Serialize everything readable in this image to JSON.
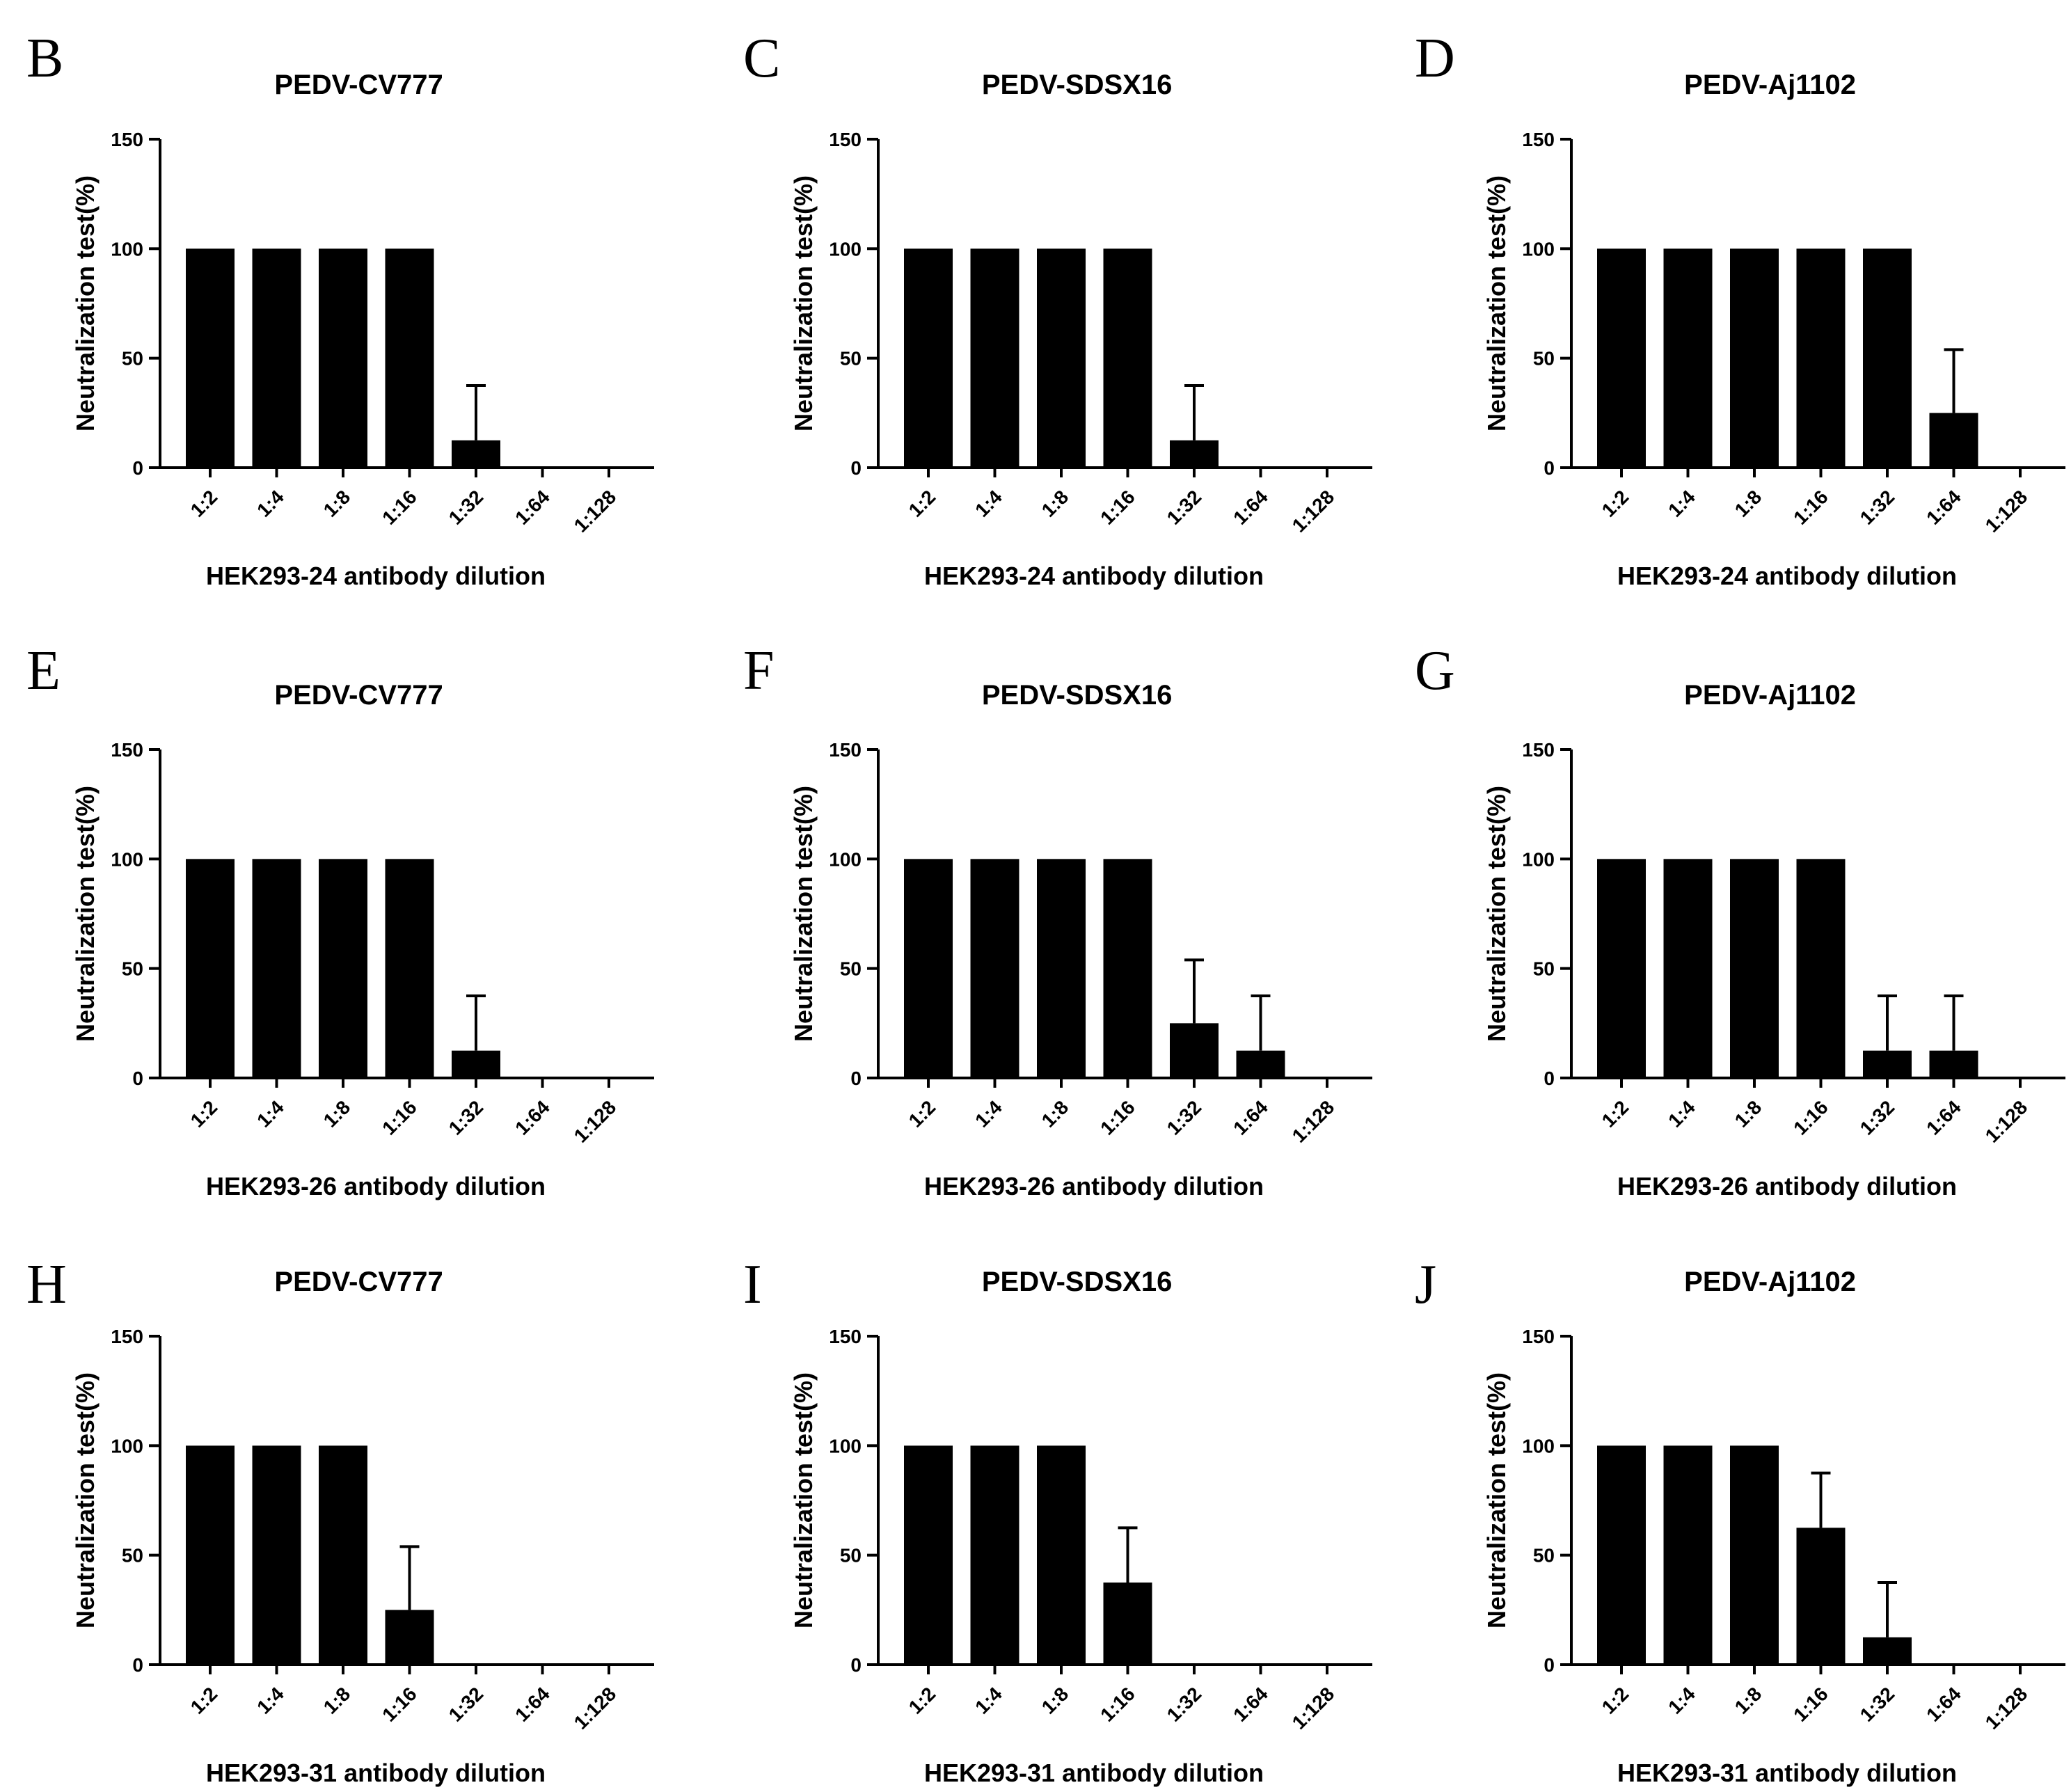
{
  "figure": {
    "panels_order": [
      "B",
      "C",
      "D",
      "E",
      "F",
      "G",
      "H",
      "I",
      "J"
    ]
  },
  "chart_data": [
    {
      "panel": "B",
      "type": "bar",
      "title": "PEDV-CV777",
      "xlabel": "HEK293-24 antibody dilution",
      "ylabel": "Neutralization test(%)",
      "ylim": [
        0,
        150
      ],
      "yticks": [
        0,
        50,
        100,
        150
      ],
      "categories": [
        "1:2",
        "1:4",
        "1:8",
        "1:16",
        "1:32",
        "1:64",
        "1:128"
      ],
      "values": [
        100,
        100,
        100,
        100,
        12.5,
        0,
        0
      ],
      "errors": [
        0,
        0,
        0,
        0,
        25,
        0,
        0
      ]
    },
    {
      "panel": "C",
      "type": "bar",
      "title": "PEDV-SDSX16",
      "xlabel": "HEK293-24 antibody dilution",
      "ylabel": "Neutralization test(%)",
      "ylim": [
        0,
        150
      ],
      "yticks": [
        0,
        50,
        100,
        150
      ],
      "categories": [
        "1:2",
        "1:4",
        "1:8",
        "1:16",
        "1:32",
        "1:64",
        "1:128"
      ],
      "values": [
        100,
        100,
        100,
        100,
        12.5,
        0,
        0
      ],
      "errors": [
        0,
        0,
        0,
        0,
        25,
        0,
        0
      ]
    },
    {
      "panel": "D",
      "type": "bar",
      "title": "PEDV-Aj1102",
      "xlabel": "HEK293-24 antibody dilution",
      "ylabel": "Neutralization test(%)",
      "ylim": [
        0,
        150
      ],
      "yticks": [
        0,
        50,
        100,
        150
      ],
      "categories": [
        "1:2",
        "1:4",
        "1:8",
        "1:16",
        "1:32",
        "1:64",
        "1:128"
      ],
      "values": [
        100,
        100,
        100,
        100,
        100,
        25,
        0
      ],
      "errors": [
        0,
        0,
        0,
        0,
        0,
        28.9,
        0
      ]
    },
    {
      "panel": "E",
      "type": "bar",
      "title": "PEDV-CV777",
      "xlabel": "HEK293-26 antibody dilution",
      "ylabel": "Neutralization test(%)",
      "ylim": [
        0,
        150
      ],
      "yticks": [
        0,
        50,
        100,
        150
      ],
      "categories": [
        "1:2",
        "1:4",
        "1:8",
        "1:16",
        "1:32",
        "1:64",
        "1:128"
      ],
      "values": [
        100,
        100,
        100,
        100,
        12.5,
        0,
        0
      ],
      "errors": [
        0,
        0,
        0,
        0,
        25,
        0,
        0
      ]
    },
    {
      "panel": "F",
      "type": "bar",
      "title": "PEDV-SDSX16",
      "xlabel": "HEK293-26 antibody dilution",
      "ylabel": "Neutralization test(%)",
      "ylim": [
        0,
        150
      ],
      "yticks": [
        0,
        50,
        100,
        150
      ],
      "categories": [
        "1:2",
        "1:4",
        "1:8",
        "1:16",
        "1:32",
        "1:64",
        "1:128"
      ],
      "values": [
        100,
        100,
        100,
        100,
        25,
        12.5,
        0
      ],
      "errors": [
        0,
        0,
        0,
        0,
        28.9,
        25,
        0
      ]
    },
    {
      "panel": "G",
      "type": "bar",
      "title": "PEDV-Aj1102",
      "xlabel": "HEK293-26 antibody dilution",
      "ylabel": "Neutralization test(%)",
      "ylim": [
        0,
        150
      ],
      "yticks": [
        0,
        50,
        100,
        150
      ],
      "categories": [
        "1:2",
        "1:4",
        "1:8",
        "1:16",
        "1:32",
        "1:64",
        "1:128"
      ],
      "values": [
        100,
        100,
        100,
        100,
        12.5,
        12.5,
        0
      ],
      "errors": [
        0,
        0,
        0,
        0,
        25,
        25,
        0
      ]
    },
    {
      "panel": "H",
      "type": "bar",
      "title": "PEDV-CV777",
      "xlabel": "HEK293-31 antibody dilution",
      "ylabel": "Neutralization test(%)",
      "ylim": [
        0,
        150
      ],
      "yticks": [
        0,
        50,
        100,
        150
      ],
      "categories": [
        "1:2",
        "1:4",
        "1:8",
        "1:16",
        "1:32",
        "1:64",
        "1:128"
      ],
      "values": [
        100,
        100,
        100,
        25,
        0,
        0,
        0
      ],
      "errors": [
        0,
        0,
        0,
        28.9,
        0,
        0,
        0
      ]
    },
    {
      "panel": "I",
      "type": "bar",
      "title": "PEDV-SDSX16",
      "xlabel": "HEK293-31 antibody dilution",
      "ylabel": "Neutralization test(%)",
      "ylim": [
        0,
        150
      ],
      "yticks": [
        0,
        50,
        100,
        150
      ],
      "categories": [
        "1:2",
        "1:4",
        "1:8",
        "1:16",
        "1:32",
        "1:64",
        "1:128"
      ],
      "values": [
        100,
        100,
        100,
        37.5,
        0,
        0,
        0
      ],
      "errors": [
        0,
        0,
        0,
        25,
        0,
        0,
        0
      ]
    },
    {
      "panel": "J",
      "type": "bar",
      "title": "PEDV-Aj1102",
      "xlabel": "HEK293-31 antibody dilution",
      "ylabel": "Neutralization test(%)",
      "ylim": [
        0,
        150
      ],
      "yticks": [
        0,
        50,
        100,
        150
      ],
      "categories": [
        "1:2",
        "1:4",
        "1:8",
        "1:16",
        "1:32",
        "1:64",
        "1:128"
      ],
      "values": [
        100,
        100,
        100,
        62.5,
        12.5,
        0,
        0
      ],
      "errors": [
        0,
        0,
        0,
        25,
        25,
        0,
        0
      ]
    }
  ]
}
